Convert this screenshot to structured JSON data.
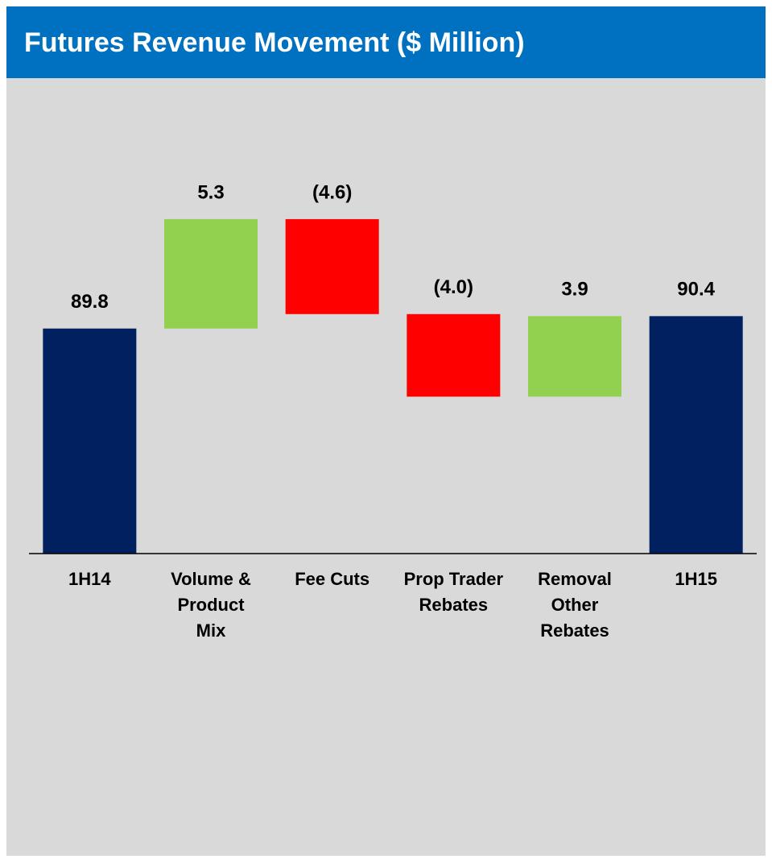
{
  "chart_data": {
    "type": "waterfall",
    "title": "Futures Revenue Movement ($ Million)",
    "categories": [
      "1H14",
      "Volume & Product Mix",
      "Fee Cuts",
      "Prop Trader Rebates",
      "Removal Other Rebates",
      "1H15"
    ],
    "values": [
      89.8,
      5.3,
      -4.6,
      -4.0,
      3.9,
      90.4
    ],
    "value_labels": [
      "89.8",
      "5.3",
      "(4.6)",
      "(4.0)",
      "3.9",
      "90.4"
    ],
    "colors": [
      "#002060",
      "#92d050",
      "#ff0000",
      "#ff0000",
      "#92d050",
      "#002060"
    ],
    "ylim": [
      78.9,
      95.8
    ]
  }
}
